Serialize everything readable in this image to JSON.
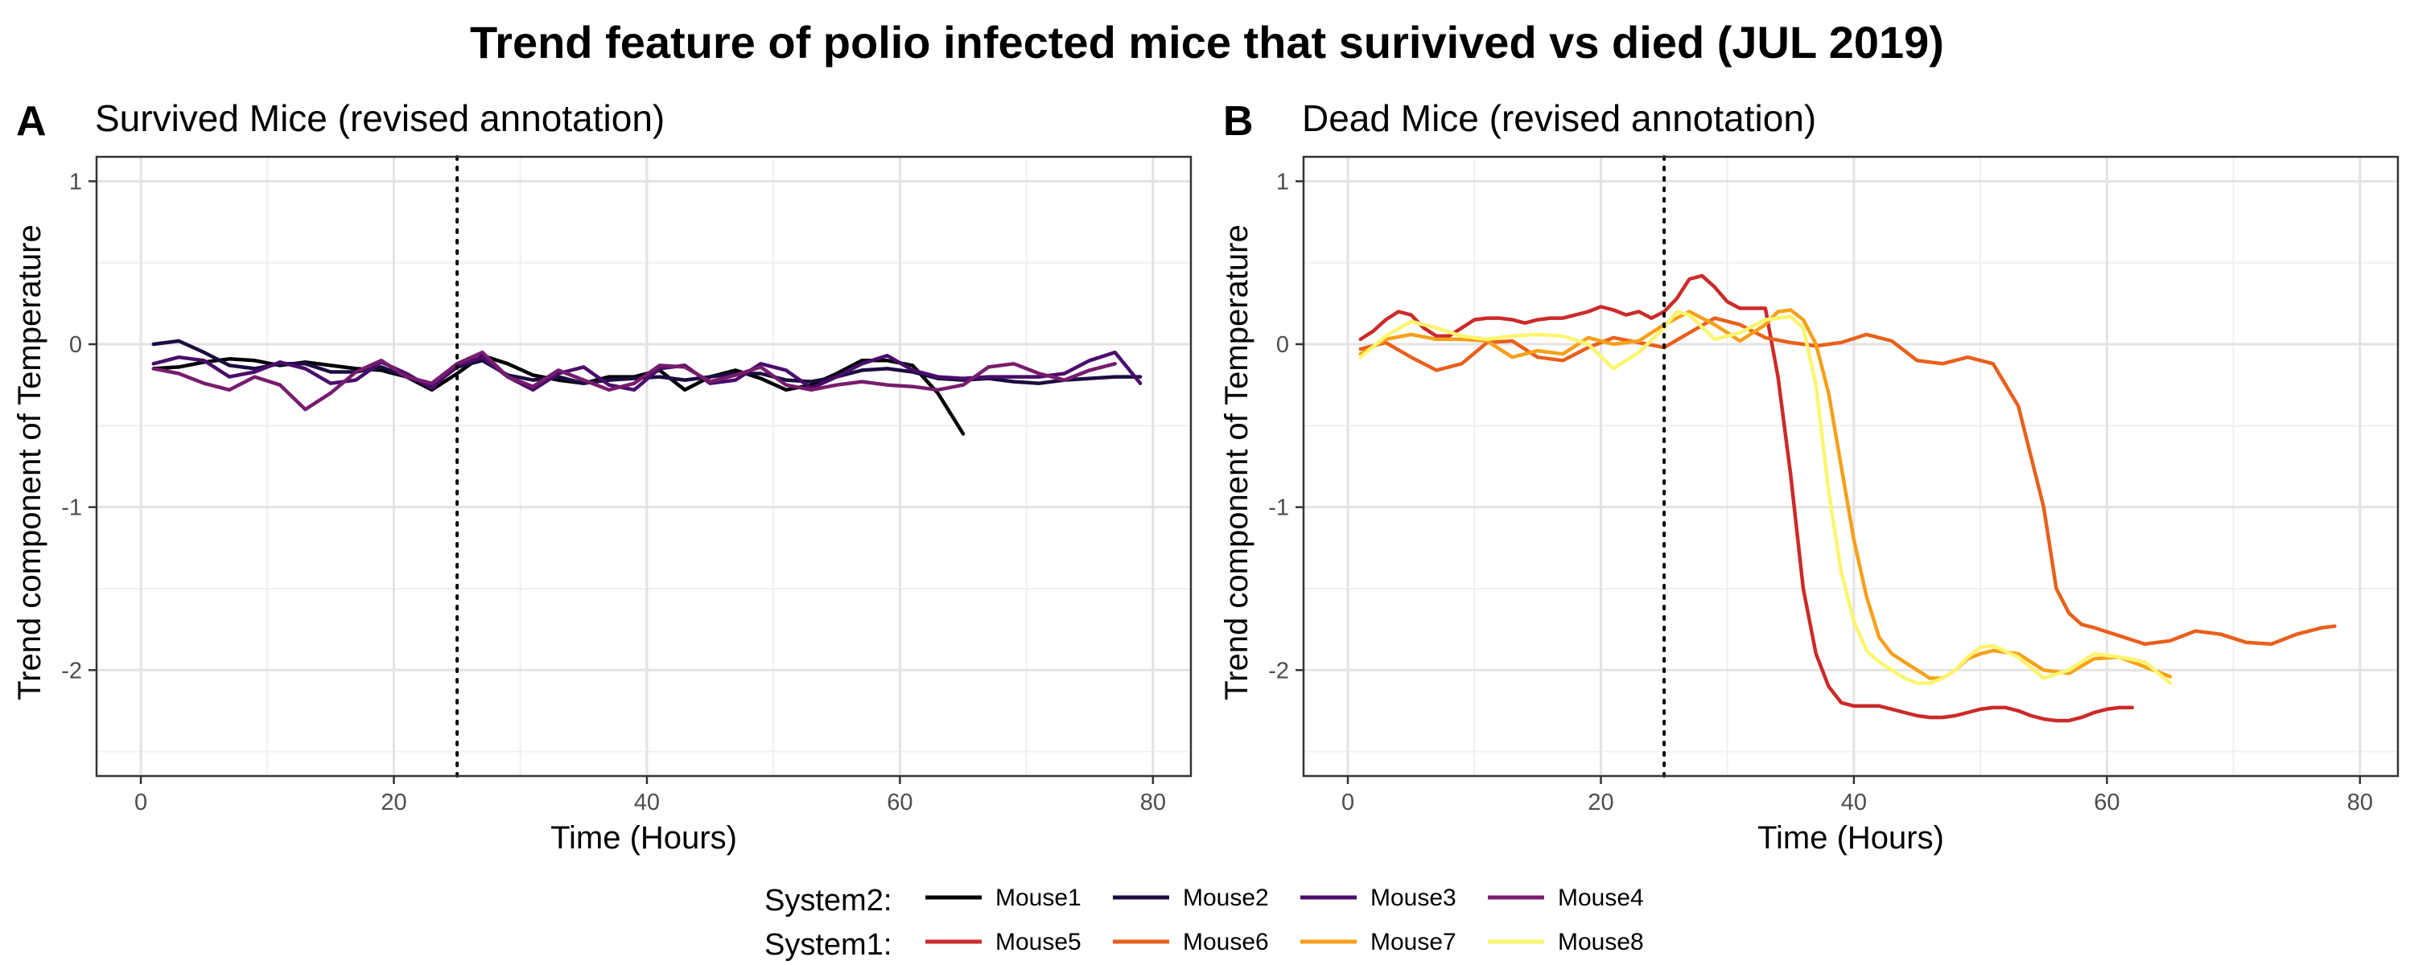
{
  "title": "Trend feature of polio infected mice that surivived vs died (JUL 2019)",
  "legend": {
    "groups": [
      {
        "title": "System2:",
        "entries": [
          {
            "label": "Mouse1",
            "color": "#000004"
          },
          {
            "label": "Mouse2",
            "color": "#1b0c41"
          },
          {
            "label": "Mouse3",
            "color": "#4a0c6b"
          },
          {
            "label": "Mouse4",
            "color": "#781c6d"
          }
        ]
      },
      {
        "title": "System1:",
        "entries": [
          {
            "label": "Mouse5",
            "color": "#cc2a2a"
          },
          {
            "label": "Mouse6",
            "color": "#e8601c"
          },
          {
            "label": "Mouse7",
            "color": "#f6a01a"
          },
          {
            "label": "Mouse8",
            "color": "#fcf56e"
          }
        ]
      }
    ]
  },
  "chart_data": [
    {
      "type": "line",
      "panel_tag": "A",
      "title": "Survived Mice (revised annotation)",
      "xlabel": "Time (Hours)",
      "ylabel": "Trend component of Temperature",
      "xlim": [
        -3.5,
        83
      ],
      "ylim": [
        -2.65,
        1.15
      ],
      "xticks": [
        0,
        20,
        40,
        60,
        80
      ],
      "yticks": [
        -2,
        -1,
        0,
        1
      ],
      "xtick_labels": [
        "0",
        "20",
        "40",
        "60",
        "80"
      ],
      "ytick_labels": [
        "-2",
        "-1",
        "0",
        "1"
      ],
      "vline": 25,
      "series": [
        {
          "name": "Mouse1",
          "color": "#000004",
          "x": [
            1,
            3,
            5,
            7,
            9,
            11,
            13,
            15,
            17,
            19,
            21,
            23,
            25,
            27,
            29,
            31,
            33,
            35,
            37,
            39,
            41,
            43,
            45,
            47,
            49,
            51,
            53,
            55,
            57,
            59,
            61,
            63,
            65
          ],
          "y": [
            -0.15,
            -0.14,
            -0.11,
            -0.09,
            -0.1,
            -0.13,
            -0.11,
            -0.13,
            -0.15,
            -0.16,
            -0.2,
            -0.28,
            -0.18,
            -0.07,
            -0.12,
            -0.19,
            -0.22,
            -0.24,
            -0.2,
            -0.2,
            -0.16,
            -0.28,
            -0.2,
            -0.16,
            -0.21,
            -0.28,
            -0.25,
            -0.18,
            -0.1,
            -0.1,
            -0.13,
            -0.3,
            -0.55
          ]
        },
        {
          "name": "Mouse2",
          "color": "#1b0c41",
          "x": [
            1,
            3,
            5,
            7,
            9,
            11,
            13,
            15,
            17,
            19,
            21,
            23,
            25,
            27,
            29,
            31,
            33,
            35,
            37,
            39,
            41,
            43,
            45,
            47,
            49,
            51,
            53,
            55,
            57,
            59,
            61,
            63,
            65,
            67,
            69,
            71,
            73,
            75,
            77,
            79
          ],
          "y": [
            0.0,
            0.02,
            -0.05,
            -0.13,
            -0.15,
            -0.12,
            -0.12,
            -0.17,
            -0.17,
            -0.14,
            -0.2,
            -0.26,
            -0.14,
            -0.1,
            -0.19,
            -0.22,
            -0.2,
            -0.24,
            -0.22,
            -0.21,
            -0.2,
            -0.22,
            -0.2,
            -0.18,
            -0.18,
            -0.22,
            -0.23,
            -0.2,
            -0.16,
            -0.15,
            -0.17,
            -0.21,
            -0.22,
            -0.21,
            -0.23,
            -0.24,
            -0.22,
            -0.21,
            -0.2,
            -0.2
          ]
        },
        {
          "name": "Mouse3",
          "color": "#4a0c6b",
          "x": [
            1,
            3,
            5,
            7,
            9,
            11,
            13,
            15,
            17,
            19,
            21,
            23,
            25,
            27,
            29,
            31,
            33,
            35,
            37,
            39,
            41,
            43,
            45,
            47,
            49,
            51,
            53,
            55,
            57,
            59,
            61,
            63,
            65,
            67,
            69,
            71,
            73,
            75,
            77,
            79
          ],
          "y": [
            -0.12,
            -0.08,
            -0.1,
            -0.2,
            -0.17,
            -0.11,
            -0.15,
            -0.24,
            -0.22,
            -0.11,
            -0.18,
            -0.27,
            -0.13,
            -0.08,
            -0.2,
            -0.28,
            -0.18,
            -0.14,
            -0.25,
            -0.28,
            -0.15,
            -0.13,
            -0.24,
            -0.22,
            -0.12,
            -0.16,
            -0.27,
            -0.2,
            -0.12,
            -0.07,
            -0.16,
            -0.2,
            -0.21,
            -0.2,
            -0.2,
            -0.2,
            -0.18,
            -0.1,
            -0.05,
            -0.24
          ]
        },
        {
          "name": "Mouse4",
          "color": "#781c6d",
          "x": [
            1,
            3,
            5,
            7,
            9,
            11,
            13,
            15,
            17,
            19,
            21,
            23,
            25,
            27,
            29,
            31,
            33,
            35,
            37,
            39,
            41,
            43,
            45,
            47,
            49,
            51,
            53,
            55,
            57,
            59,
            61,
            63,
            65,
            67,
            69,
            71,
            73,
            75,
            77
          ],
          "y": [
            -0.15,
            -0.18,
            -0.24,
            -0.28,
            -0.2,
            -0.25,
            -0.4,
            -0.3,
            -0.17,
            -0.1,
            -0.2,
            -0.24,
            -0.12,
            -0.05,
            -0.2,
            -0.26,
            -0.16,
            -0.22,
            -0.28,
            -0.24,
            -0.13,
            -0.14,
            -0.23,
            -0.19,
            -0.14,
            -0.25,
            -0.28,
            -0.25,
            -0.23,
            -0.25,
            -0.26,
            -0.28,
            -0.25,
            -0.14,
            -0.12,
            -0.18,
            -0.22,
            -0.16,
            -0.12
          ]
        }
      ]
    },
    {
      "type": "line",
      "panel_tag": "B",
      "title": "Dead Mice (revised annotation)",
      "xlabel": "Time (Hours)",
      "ylabel": "Trend component of Temperature",
      "xlim": [
        -3.5,
        83
      ],
      "ylim": [
        -2.65,
        1.15
      ],
      "xticks": [
        0,
        20,
        40,
        60,
        80
      ],
      "yticks": [
        -2,
        -1,
        0,
        1
      ],
      "xtick_labels": [
        "0",
        "20",
        "40",
        "60",
        "80"
      ],
      "ytick_labels": [
        "-2",
        "-1",
        "0",
        "1"
      ],
      "vline": 25,
      "series": [
        {
          "name": "Mouse5",
          "color": "#cc2a2a",
          "x": [
            1,
            2,
            3,
            4,
            5,
            6,
            7,
            8,
            9,
            10,
            11,
            12,
            13,
            14,
            15,
            16,
            17,
            18,
            19,
            20,
            21,
            22,
            23,
            24,
            25,
            26,
            27,
            28,
            29,
            30,
            31,
            32,
            33,
            34,
            35,
            36,
            37,
            38,
            39,
            40,
            41,
            42,
            43,
            44,
            45,
            46,
            47,
            48,
            49,
            50,
            51,
            52,
            53,
            54,
            55,
            56,
            57,
            58,
            59,
            60,
            61,
            62
          ],
          "y": [
            0.03,
            0.08,
            0.15,
            0.2,
            0.18,
            0.1,
            0.05,
            0.05,
            0.1,
            0.15,
            0.16,
            0.16,
            0.15,
            0.13,
            0.15,
            0.16,
            0.16,
            0.18,
            0.2,
            0.23,
            0.21,
            0.18,
            0.2,
            0.16,
            0.2,
            0.28,
            0.4,
            0.42,
            0.35,
            0.26,
            0.22,
            0.22,
            0.22,
            -0.2,
            -0.8,
            -1.5,
            -1.9,
            -2.1,
            -2.2,
            -2.22,
            -2.22,
            -2.22,
            -2.24,
            -2.26,
            -2.28,
            -2.29,
            -2.29,
            -2.28,
            -2.26,
            -2.24,
            -2.23,
            -2.23,
            -2.25,
            -2.28,
            -2.3,
            -2.31,
            -2.31,
            -2.29,
            -2.26,
            -2.24,
            -2.23,
            -2.23
          ]
        },
        {
          "name": "Mouse6",
          "color": "#e8601c",
          "x": [
            1,
            3,
            5,
            7,
            9,
            11,
            13,
            15,
            17,
            19,
            21,
            23,
            25,
            27,
            29,
            31,
            33,
            35,
            37,
            39,
            41,
            43,
            45,
            47,
            49,
            51,
            53,
            55,
            56,
            57,
            58,
            59,
            61,
            63,
            65,
            67,
            69,
            71,
            73,
            75,
            77,
            78
          ],
          "y": [
            -0.03,
            0.01,
            -0.08,
            -0.16,
            -0.12,
            0.01,
            0.02,
            -0.08,
            -0.1,
            -0.02,
            0.04,
            0.01,
            -0.02,
            0.07,
            0.16,
            0.12,
            0.04,
            0.01,
            -0.01,
            0.01,
            0.06,
            0.02,
            -0.1,
            -0.12,
            -0.08,
            -0.12,
            -0.38,
            -1.0,
            -1.5,
            -1.65,
            -1.72,
            -1.74,
            -1.79,
            -1.84,
            -1.82,
            -1.76,
            -1.78,
            -1.83,
            -1.84,
            -1.78,
            -1.74,
            -1.73
          ]
        },
        {
          "name": "Mouse7",
          "color": "#f6a01a",
          "x": [
            1,
            3,
            5,
            7,
            9,
            11,
            13,
            15,
            17,
            19,
            21,
            23,
            25,
            27,
            29,
            31,
            33,
            34,
            35,
            36,
            37,
            38,
            39,
            40,
            41,
            42,
            43,
            44,
            45,
            46,
            47,
            48,
            49,
            50,
            51,
            53,
            55,
            57,
            59,
            61,
            63,
            65
          ],
          "y": [
            -0.06,
            0.03,
            0.06,
            0.03,
            0.03,
            0.02,
            -0.08,
            -0.04,
            -0.06,
            0.04,
            0.0,
            0.02,
            0.12,
            0.2,
            0.12,
            0.02,
            0.12,
            0.2,
            0.21,
            0.15,
            0.0,
            -0.3,
            -0.75,
            -1.2,
            -1.55,
            -1.8,
            -1.9,
            -1.95,
            -2.0,
            -2.05,
            -2.05,
            -2.0,
            -1.93,
            -1.9,
            -1.88,
            -1.9,
            -2.0,
            -2.02,
            -1.93,
            -1.92,
            -1.98,
            -2.04
          ]
        },
        {
          "name": "Mouse8",
          "color": "#fcf56e",
          "x": [
            1,
            3,
            5,
            7,
            9,
            11,
            13,
            15,
            17,
            19,
            21,
            23,
            25,
            26,
            27,
            29,
            31,
            33,
            35,
            36,
            37,
            38,
            39,
            40,
            41,
            42,
            43,
            44,
            45,
            46,
            47,
            48,
            49,
            50,
            51,
            53,
            55,
            57,
            59,
            61,
            63,
            65
          ],
          "y": [
            -0.08,
            0.05,
            0.14,
            0.1,
            0.05,
            0.03,
            0.05,
            0.06,
            0.05,
            0.0,
            -0.15,
            -0.05,
            0.1,
            0.2,
            0.18,
            0.03,
            0.07,
            0.15,
            0.17,
            0.1,
            -0.25,
            -0.9,
            -1.4,
            -1.7,
            -1.88,
            -1.95,
            -2.0,
            -2.05,
            -2.08,
            -2.08,
            -2.05,
            -2.0,
            -1.92,
            -1.86,
            -1.85,
            -1.92,
            -2.05,
            -2.0,
            -1.9,
            -1.92,
            -1.95,
            -2.08
          ]
        }
      ]
    }
  ]
}
